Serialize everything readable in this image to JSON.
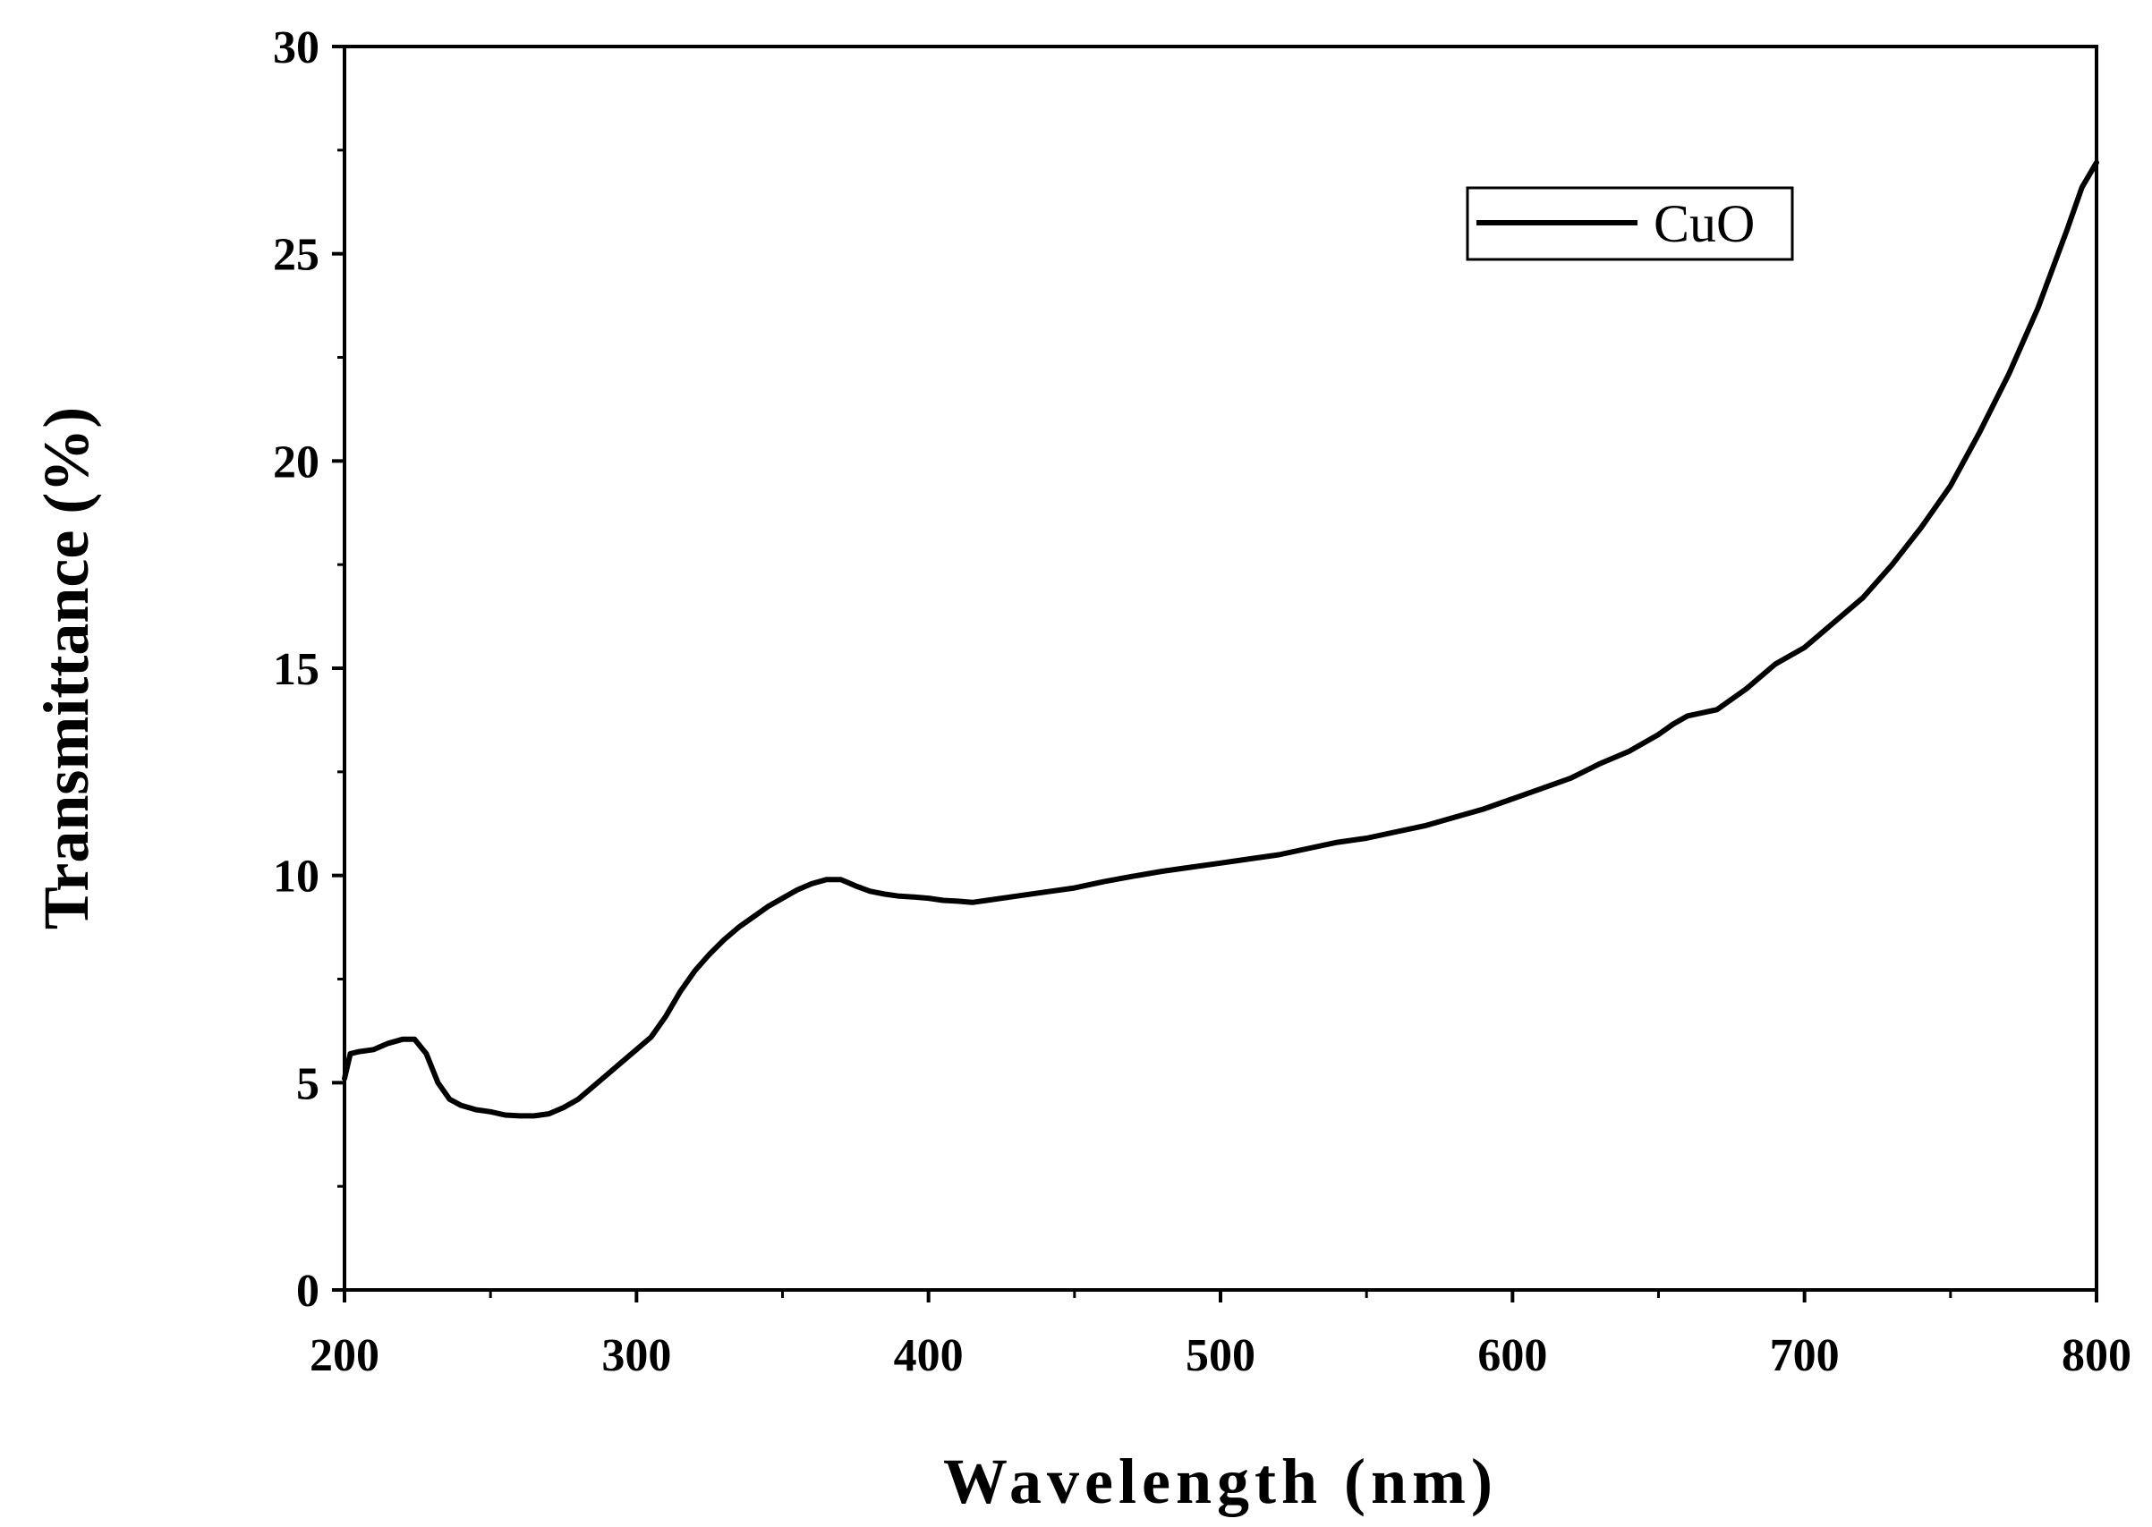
{
  "chart_data": {
    "type": "line",
    "title": "",
    "xlabel": "Wavelength (nm)",
    "ylabel": "Transmittance (%)",
    "xlim": [
      200,
      800
    ],
    "ylim": [
      0,
      30
    ],
    "xticks": [
      200,
      300,
      400,
      500,
      600,
      700,
      800
    ],
    "yticks": [
      0,
      5,
      10,
      15,
      20,
      25,
      30
    ],
    "grid": false,
    "legend": {
      "position": "top-right",
      "entries": [
        "CuO"
      ]
    },
    "series": [
      {
        "name": "CuO",
        "color": "#000000",
        "x": [
          200,
          202,
          205,
          210,
          215,
          220,
          224,
          228,
          232,
          236,
          240,
          245,
          250,
          255,
          260,
          265,
          270,
          275,
          280,
          285,
          290,
          295,
          300,
          305,
          310,
          315,
          320,
          325,
          330,
          335,
          340,
          345,
          350,
          355,
          360,
          365,
          370,
          375,
          380,
          385,
          390,
          395,
          400,
          405,
          410,
          415,
          420,
          430,
          440,
          450,
          460,
          470,
          480,
          490,
          500,
          510,
          520,
          530,
          540,
          550,
          560,
          570,
          580,
          590,
          600,
          610,
          620,
          630,
          640,
          650,
          655,
          660,
          670,
          680,
          690,
          700,
          710,
          720,
          730,
          740,
          750,
          760,
          770,
          780,
          790,
          795,
          800
        ],
        "y": [
          5.1,
          5.7,
          5.75,
          5.8,
          5.95,
          6.05,
          6.05,
          5.7,
          5.0,
          4.6,
          4.45,
          4.35,
          4.3,
          4.22,
          4.2,
          4.2,
          4.25,
          4.4,
          4.6,
          4.9,
          5.2,
          5.5,
          5.8,
          6.1,
          6.6,
          7.2,
          7.7,
          8.1,
          8.45,
          8.75,
          9.0,
          9.25,
          9.45,
          9.65,
          9.8,
          9.9,
          9.9,
          9.75,
          9.62,
          9.55,
          9.5,
          9.48,
          9.45,
          9.4,
          9.38,
          9.35,
          9.4,
          9.5,
          9.6,
          9.7,
          9.85,
          9.98,
          10.1,
          10.2,
          10.3,
          10.4,
          10.5,
          10.65,
          10.8,
          10.9,
          11.05,
          11.2,
          11.4,
          11.6,
          11.85,
          12.1,
          12.35,
          12.7,
          13.0,
          13.4,
          13.65,
          13.85,
          14.0,
          14.5,
          15.1,
          15.5,
          16.1,
          16.7,
          17.5,
          18.4,
          19.4,
          20.7,
          22.1,
          23.7,
          25.6,
          26.6,
          27.2
        ]
      }
    ]
  }
}
